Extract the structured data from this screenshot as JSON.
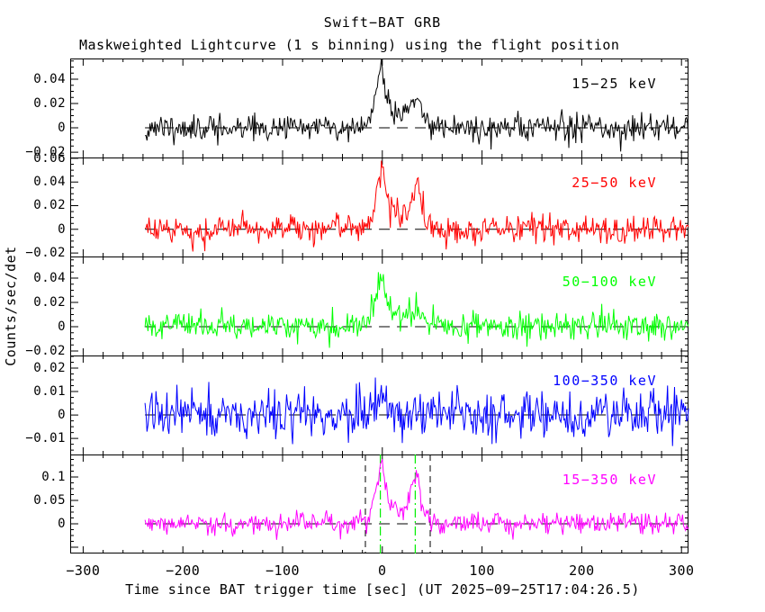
{
  "page": {
    "title": "Swift−BAT GRB",
    "subtitle": "Maskweighted Lightcurve (1 s binning) using the flight position",
    "x_axis_label": "Time since BAT trigger time [sec] (UT 2025−09−25T17:04:26.5)",
    "y_axis_label": "Counts/sec/det"
  },
  "chart_data": {
    "type": "line",
    "title": "Swift−BAT GRB",
    "subtitle": "Maskweighted Lightcurve (1 s binning) using the flight position",
    "xlabel": "Time since BAT trigger time [sec] (UT 2025−09−25T17:04:26.5)",
    "ylabel": "Counts/sec/det",
    "trigger_utc": "2025-09-25T17:04:26.5",
    "bin_seconds": 1,
    "x_range": [
      -313,
      307
    ],
    "data_t_range": [
      -238,
      307
    ],
    "x_minor_step": 20,
    "x_ticks": [
      {
        "v": -300,
        "label": "−300"
      },
      {
        "v": -200,
        "label": "−200"
      },
      {
        "v": -100,
        "label": "−100"
      },
      {
        "v": 0,
        "label": "0"
      },
      {
        "v": 100,
        "label": "100"
      },
      {
        "v": 200,
        "label": "200"
      },
      {
        "v": 300,
        "label": "300"
      }
    ],
    "zero_line": {
      "style": "dashed",
      "color": "#000000"
    },
    "burst_interval_markers": {
      "black_dashed_t": [
        -17,
        48
      ],
      "green_dashdot_t": [
        -2,
        33
      ],
      "green_color": "#00ee00"
    },
    "panels": [
      {
        "label": "15−25 keV",
        "color": "#000000",
        "y_range": [
          -0.0244,
          0.057
        ],
        "y_major_step": 0.02,
        "y_minor_step": 0.005,
        "y_ticks": [
          {
            "v": 0.04,
            "label": "0.04"
          },
          {
            "v": 0.02,
            "label": "0.02"
          },
          {
            "v": 0,
            "label": "0"
          },
          {
            "v": -0.02,
            "label": "−0.02"
          }
        ],
        "noise_sigma": 0.0055,
        "seed": 11,
        "peaks": [
          {
            "t": 0,
            "amp": 0.045,
            "rise": 6,
            "decay": 5
          },
          {
            "t": 36,
            "amp": 0.022,
            "rise": 8,
            "decay": 5
          },
          {
            "t": 15,
            "amp": 0.01,
            "rise": 16,
            "decay": 16
          }
        ]
      },
      {
        "label": "25−50 keV",
        "color": "#ff0000",
        "y_range": [
          -0.023,
          0.0607
        ],
        "y_major_step": 0.02,
        "y_minor_step": 0.005,
        "y_ticks": [
          {
            "v": 0.06,
            "label": "0.06"
          },
          {
            "v": 0.04,
            "label": "0.04"
          },
          {
            "v": 0.02,
            "label": "0.02"
          },
          {
            "v": 0,
            "label": "0"
          },
          {
            "v": -0.02,
            "label": "−0.02"
          }
        ],
        "noise_sigma": 0.006,
        "seed": 22,
        "peaks": [
          {
            "t": 0,
            "amp": 0.046,
            "rise": 6,
            "decay": 5
          },
          {
            "t": 37,
            "amp": 0.033,
            "rise": 7,
            "decay": 5
          },
          {
            "t": 14,
            "amp": 0.013,
            "rise": 13,
            "decay": 13
          }
        ]
      },
      {
        "label": "50−100 keV",
        "color": "#00ff00",
        "y_range": [
          -0.0237,
          0.0578
        ],
        "y_major_step": 0.02,
        "y_minor_step": 0.005,
        "y_ticks": [
          {
            "v": 0.04,
            "label": "0.04"
          },
          {
            "v": 0.02,
            "label": "0.02"
          },
          {
            "v": 0,
            "label": "0"
          },
          {
            "v": -0.02,
            "label": "−0.02"
          }
        ],
        "noise_sigma": 0.0055,
        "seed": 33,
        "peaks": [
          {
            "t": 0,
            "amp": 0.036,
            "rise": 7,
            "decay": 6
          },
          {
            "t": 34,
            "amp": 0.014,
            "rise": 7,
            "decay": 6
          },
          {
            "t": 10,
            "amp": 0.007,
            "rise": 16,
            "decay": 16
          }
        ]
      },
      {
        "label": "100−350 keV",
        "color": "#0000ff",
        "y_range": [
          -0.0169,
          0.0254
        ],
        "y_major_step": 0.01,
        "y_minor_step": 0.0025,
        "y_ticks": [
          {
            "v": 0.02,
            "label": "0.02"
          },
          {
            "v": 0.01,
            "label": "0.01"
          },
          {
            "v": 0,
            "label": "0"
          },
          {
            "v": -0.01,
            "label": "−0.01"
          }
        ],
        "noise_sigma": 0.005,
        "seed": 44,
        "peaks": [
          {
            "t": 0,
            "amp": 0.006,
            "rise": 8,
            "decay": 10
          }
        ]
      },
      {
        "label": "15−350 keV",
        "color": "#ff00ff",
        "y_range": [
          -0.0635,
          0.148
        ],
        "y_major_step": 0.05,
        "y_minor_step": 0.0125,
        "y_ticks": [
          {
            "v": 0.1,
            "label": "0.1"
          },
          {
            "v": 0.05,
            "label": "0.05"
          },
          {
            "v": 0,
            "label": "0"
          }
        ],
        "noise_sigma": 0.011,
        "seed": 55,
        "peaks": [
          {
            "t": 0,
            "amp": 0.125,
            "rise": 6,
            "decay": 5
          },
          {
            "t": 36,
            "amp": 0.1,
            "rise": 7,
            "decay": 4.5
          },
          {
            "t": 15,
            "amp": 0.03,
            "rise": 12,
            "decay": 12
          }
        ]
      }
    ]
  }
}
